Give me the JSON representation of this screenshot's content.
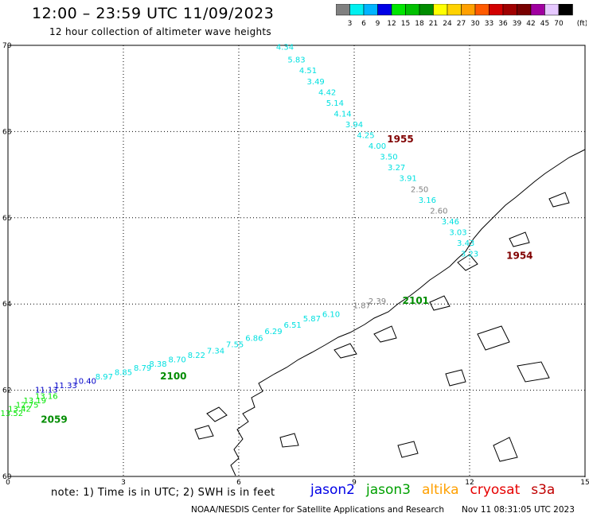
{
  "header": {
    "title": "12:00 – 23:59 UTC 11/09/2023",
    "subtitle": "12 hour collection of altimeter wave heights"
  },
  "colorbar": {
    "unit": "(ft)",
    "bins": [
      {
        "color": "#808080",
        "label": "3"
      },
      {
        "color": "#00f0f0",
        "label": "6"
      },
      {
        "color": "#00b4ff",
        "label": "9"
      },
      {
        "color": "#0000e6",
        "label": "12"
      },
      {
        "color": "#00e600",
        "label": "15"
      },
      {
        "color": "#00c000",
        "label": "18"
      },
      {
        "color": "#008c00",
        "label": "21"
      },
      {
        "color": "#ffff00",
        "label": "24"
      },
      {
        "color": "#ffd200",
        "label": "27"
      },
      {
        "color": "#ffa000",
        "label": "30"
      },
      {
        "color": "#ff5a00",
        "label": "33"
      },
      {
        "color": "#d20000",
        "label": "36"
      },
      {
        "color": "#a00000",
        "label": "39"
      },
      {
        "color": "#780000",
        "label": "42"
      },
      {
        "color": "#a000a0",
        "label": "45"
      },
      {
        "color": "#e6c8ff",
        "label": "70"
      },
      {
        "color": "#000000",
        "label": ""
      }
    ]
  },
  "map": {
    "lat_labels": [
      "70",
      "68",
      "66",
      "64",
      "62",
      "60"
    ],
    "lon_labels": [
      "0",
      "3",
      "6",
      "9",
      "12",
      "15"
    ]
  },
  "tracks": [
    {
      "id": "1955",
      "time_label": "1955",
      "time_color": "#800000",
      "points": [
        {
          "lon": 7.2,
          "lat": 69.9,
          "val": "4.34",
          "color": "#00e0e0"
        },
        {
          "lon": 7.5,
          "lat": 69.6,
          "val": "5.83",
          "color": "#00e0e0"
        },
        {
          "lon": 7.8,
          "lat": 69.35,
          "val": "4.51",
          "color": "#00e0e0"
        },
        {
          "lon": 8.0,
          "lat": 69.1,
          "val": "3.49",
          "color": "#00e0e0"
        },
        {
          "lon": 8.3,
          "lat": 68.85,
          "val": "4.42",
          "color": "#00e0e0"
        },
        {
          "lon": 8.5,
          "lat": 68.6,
          "val": "5.14",
          "color": "#00e0e0"
        },
        {
          "lon": 8.7,
          "lat": 68.35,
          "val": "4.14",
          "color": "#00e0e0"
        },
        {
          "lon": 9.0,
          "lat": 68.1,
          "val": "3.94",
          "color": "#00e0e0"
        },
        {
          "lon": 9.3,
          "lat": 67.85,
          "val": "4.25",
          "color": "#00e0e0"
        },
        {
          "lon": 9.6,
          "lat": 67.6,
          "val": "4.00",
          "color": "#00e0e0"
        },
        {
          "lon": 9.9,
          "lat": 67.35,
          "val": "3.50",
          "color": "#00e0e0"
        },
        {
          "lon": 10.1,
          "lat": 67.1,
          "val": "3.27",
          "color": "#00e0e0"
        },
        {
          "lon": 10.4,
          "lat": 66.85,
          "val": "3.91",
          "color": "#00e0e0"
        },
        {
          "lon": 10.7,
          "lat": 66.6,
          "val": "2.50",
          "color": "#808080"
        },
        {
          "lon": 10.9,
          "lat": 66.35,
          "val": "3.16",
          "color": "#00e0e0"
        },
        {
          "lon": 11.2,
          "lat": 66.1,
          "val": "2.60",
          "color": "#808080"
        },
        {
          "lon": 11.5,
          "lat": 65.85,
          "val": "3.46",
          "color": "#00e0e0"
        },
        {
          "lon": 11.7,
          "lat": 65.6,
          "val": "3.03",
          "color": "#00e0e0"
        },
        {
          "lon": 11.9,
          "lat": 65.35,
          "val": "3.43",
          "color": "#00e0e0"
        }
      ]
    },
    {
      "id": "1954",
      "time_label": "1954",
      "time_color": "#800000",
      "points": [
        {
          "lon": 12.0,
          "lat": 65.1,
          "val": "3.23",
          "color": "#00e0e0"
        }
      ]
    },
    {
      "id": "2101",
      "time_label": "2101",
      "time_color": "#008c00",
      "points": [
        {
          "lon": 9.2,
          "lat": 63.9,
          "val": "1.87",
          "color": "#808080"
        },
        {
          "lon": 9.6,
          "lat": 64.0,
          "val": "2.39",
          "color": "#808080"
        }
      ]
    },
    {
      "id": "2100",
      "time_label": "2100",
      "time_color": "#008c00",
      "points": [
        {
          "lon": 8.4,
          "lat": 63.7,
          "val": "6.10",
          "color": "#00e0e0"
        },
        {
          "lon": 7.9,
          "lat": 63.6,
          "val": "5.87",
          "color": "#00e0e0"
        },
        {
          "lon": 7.4,
          "lat": 63.45,
          "val": "6.51",
          "color": "#00e0e0"
        },
        {
          "lon": 6.9,
          "lat": 63.3,
          "val": "6.29",
          "color": "#00e0e0"
        },
        {
          "lon": 6.4,
          "lat": 63.15,
          "val": "6.86",
          "color": "#00e0e0"
        },
        {
          "lon": 5.9,
          "lat": 63.0,
          "val": "7.55",
          "color": "#00e0e0"
        },
        {
          "lon": 5.4,
          "lat": 62.85,
          "val": "7.34",
          "color": "#00e0e0"
        },
        {
          "lon": 4.9,
          "lat": 62.75,
          "val": "8.22",
          "color": "#00e0e0"
        },
        {
          "lon": 4.4,
          "lat": 62.65,
          "val": "8.70",
          "color": "#00e0e0"
        },
        {
          "lon": 3.9,
          "lat": 62.55,
          "val": "8.38",
          "color": "#00e0e0"
        },
        {
          "lon": 3.5,
          "lat": 62.45,
          "val": "8.79",
          "color": "#00e0e0"
        },
        {
          "lon": 3.0,
          "lat": 62.35,
          "val": "8.85",
          "color": "#00e0e0"
        },
        {
          "lon": 2.5,
          "lat": 62.25,
          "val": "8.97",
          "color": "#00e0e0"
        },
        {
          "lon": 2.0,
          "lat": 62.15,
          "val": "10.40",
          "color": "#0000c8"
        },
        {
          "lon": 1.5,
          "lat": 62.05,
          "val": "11.33",
          "color": "#0000c8"
        },
        {
          "lon": 1.0,
          "lat": 61.95,
          "val": "11.13",
          "color": "#0000c8"
        }
      ]
    },
    {
      "id": "2059",
      "time_label": "2059",
      "time_color": "#008c00",
      "points": [
        {
          "lon": 1.0,
          "lat": 61.8,
          "val": "13.16",
          "color": "#00e600"
        },
        {
          "lon": 0.7,
          "lat": 61.7,
          "val": "13.19",
          "color": "#00e600"
        },
        {
          "lon": 0.5,
          "lat": 61.6,
          "val": "12.75",
          "color": "#00e600"
        },
        {
          "lon": 0.3,
          "lat": 61.5,
          "val": "13.42",
          "color": "#00e600"
        },
        {
          "lon": 0.1,
          "lat": 61.4,
          "val": "13.52",
          "color": "#00e600"
        }
      ]
    }
  ],
  "note": "note: 1) Time is in UTC; 2) SWH is in feet",
  "satellites": [
    {
      "name": "jason2",
      "color": "#0000e6"
    },
    {
      "name": "jason3",
      "color": "#00a000"
    },
    {
      "name": "altika",
      "color": "#ffa000"
    },
    {
      "name": "cryosat",
      "color": "#e60000"
    },
    {
      "name": "s3a",
      "color": "#c00000"
    }
  ],
  "footer": {
    "credit": "NOAA/NESDIS Center for Satellite Applications and Research",
    "timestamp": "Nov 11 08:31:05 UTC 2023"
  }
}
